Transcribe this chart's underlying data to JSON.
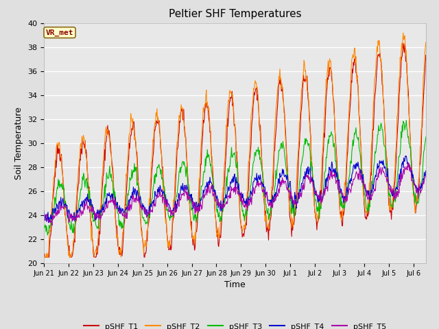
{
  "title": "Peltier SHF Temperatures",
  "ylabel": "Soil Temperature",
  "xlabel": "Time",
  "annotation": "VR_met",
  "ylim": [
    20,
    40
  ],
  "background_color": "#e0e0e0",
  "plot_bg_color": "#e8e8e8",
  "grid_color": "#ffffff",
  "series": [
    "pSHF_T1",
    "pSHF_T2",
    "pSHF_T3",
    "pSHF_T4",
    "pSHF_T5"
  ],
  "colors": [
    "#cc0000",
    "#ff8800",
    "#00bb00",
    "#0000cc",
    "#aa00aa"
  ],
  "xtick_labels": [
    "Jun 21",
    "Jun 22",
    "Jun 23",
    "Jun 24",
    "Jun 25",
    "Jun 26",
    "Jun 27",
    "Jun 28",
    "Jun 29",
    "Jun 30",
    "Jul 1",
    "Jul 2",
    "Jul 3",
    "Jul 4",
    "Jul 5",
    "Jul 6"
  ],
  "title_fontsize": 11,
  "tick_fontsize": 8,
  "label_fontsize": 9,
  "n_days": 15.5,
  "points_per_day": 48,
  "t1_trend": [
    24.5,
    31.5
  ],
  "t1_amp": [
    4.8,
    7.0
  ],
  "t2_trend": [
    24.8,
    32.2
  ],
  "t2_amp": [
    4.8,
    7.2
  ],
  "t3_trend": [
    24.5,
    28.5
  ],
  "t3_amp": [
    1.8,
    3.5
  ],
  "t4_trend": [
    24.3,
    27.5
  ],
  "t4_amp": [
    0.6,
    1.5
  ],
  "t5_trend": [
    24.0,
    27.0
  ],
  "t5_amp": [
    0.5,
    1.2
  ],
  "phase_shift": 0.35
}
